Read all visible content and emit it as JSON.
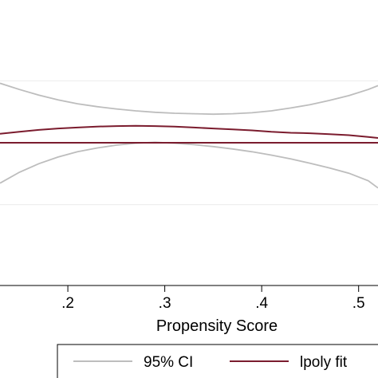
{
  "chart_data": {
    "type": "line",
    "xlabel": "Propensity Score",
    "ylabel": "",
    "title": "",
    "xlim": [
      0.13,
      0.52
    ],
    "ylim": [
      -0.3,
      0.3
    ],
    "x_ticks": [
      {
        "value": 0.2,
        "label": ".2"
      },
      {
        "value": 0.3,
        "label": ".3"
      },
      {
        "value": 0.4,
        "label": ".4"
      },
      {
        "value": 0.5,
        "label": ".5"
      }
    ],
    "gridlines_y": [
      -0.13,
      0.13
    ],
    "reference_line": {
      "y": 0.0,
      "color": "#7b1c2e"
    },
    "series": [
      {
        "name": "95% CI",
        "color": "#bdbdbd",
        "band": "upper",
        "x": [
          0.13,
          0.15,
          0.17,
          0.19,
          0.21,
          0.23,
          0.25,
          0.27,
          0.29,
          0.31,
          0.33,
          0.35,
          0.37,
          0.39,
          0.41,
          0.43,
          0.45,
          0.47,
          0.49,
          0.51,
          0.52
        ],
        "y": [
          0.125,
          0.112,
          0.1,
          0.09,
          0.082,
          0.076,
          0.071,
          0.067,
          0.064,
          0.062,
          0.061,
          0.06,
          0.061,
          0.063,
          0.067,
          0.073,
          0.08,
          0.089,
          0.099,
          0.112,
          0.12
        ]
      },
      {
        "name": "95% CI",
        "color": "#bdbdbd",
        "band": "lower",
        "x": [
          0.13,
          0.15,
          0.17,
          0.19,
          0.21,
          0.23,
          0.25,
          0.27,
          0.29,
          0.31,
          0.33,
          0.35,
          0.37,
          0.39,
          0.41,
          0.43,
          0.45,
          0.47,
          0.49,
          0.51,
          0.52
        ],
        "y": [
          -0.085,
          -0.062,
          -0.044,
          -0.03,
          -0.019,
          -0.011,
          -0.005,
          -0.001,
          0.001,
          -0.001,
          -0.004,
          -0.008,
          -0.013,
          -0.019,
          -0.026,
          -0.034,
          -0.043,
          -0.053,
          -0.064,
          -0.08,
          -0.095
        ]
      },
      {
        "name": "lpoly fit",
        "color": "#7b1c2e",
        "band": "fit",
        "x": [
          0.13,
          0.15,
          0.17,
          0.19,
          0.21,
          0.23,
          0.25,
          0.27,
          0.29,
          0.31,
          0.33,
          0.35,
          0.37,
          0.39,
          0.41,
          0.43,
          0.45,
          0.47,
          0.49,
          0.51,
          0.52
        ],
        "y": [
          0.019,
          0.023,
          0.027,
          0.03,
          0.032,
          0.034,
          0.035,
          0.0355,
          0.035,
          0.034,
          0.032,
          0.03,
          0.028,
          0.026,
          0.023,
          0.021,
          0.02,
          0.018,
          0.016,
          0.012,
          0.01
        ]
      }
    ],
    "legend": {
      "placement": "bottom",
      "entries": [
        {
          "label": "95% CI",
          "color": "#bdbdbd"
        },
        {
          "label": "lpoly fit",
          "color": "#7b1c2e"
        }
      ]
    }
  }
}
